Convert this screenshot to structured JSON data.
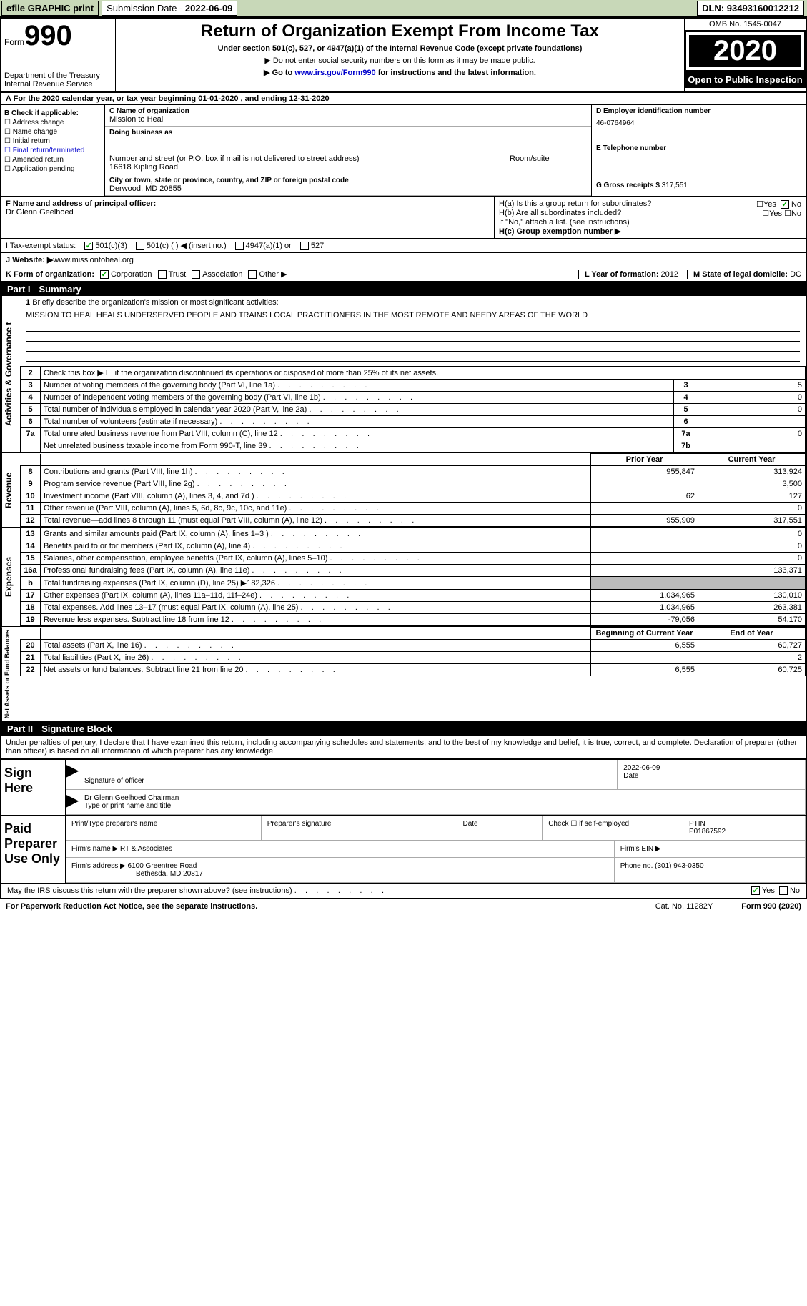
{
  "topbar": {
    "efile": "efile GRAPHIC print",
    "sub_date_label": "Submission Date - ",
    "sub_date": "2022-06-09",
    "dln_label": "DLN: ",
    "dln": "93493160012212"
  },
  "header": {
    "form_label": "Form",
    "form_num": "990",
    "dept": "Department of the Treasury",
    "irs": "Internal Revenue Service",
    "title": "Return of Organization Exempt From Income Tax",
    "sub": "Under section 501(c), 527, or 4947(a)(1) of the Internal Revenue Code (except private foundations)",
    "note1": "▶ Do not enter social security numbers on this form as it may be made public.",
    "note2_pre": "▶ Go to ",
    "note2_link": "www.irs.gov/Form990",
    "note2_post": " for instructions and the latest information.",
    "omb": "OMB No. 1545-0047",
    "year": "2020",
    "open": "Open to Public Inspection"
  },
  "line_a": "For the 2020 calendar year, or tax year beginning 01-01-2020   , and ending 12-31-2020",
  "col_b": {
    "title": "B Check if applicable:",
    "items": [
      "Address change",
      "Name change",
      "Initial return",
      "Final return/terminated",
      "Amended return",
      "Application pending"
    ]
  },
  "col_c": {
    "name_label": "C Name of organization",
    "name": "Mission to Heal",
    "dba_label": "Doing business as",
    "dba": "",
    "addr_label": "Number and street (or P.O. box if mail is not delivered to street address)",
    "room_label": "Room/suite",
    "addr": "16618 Kipling Road",
    "city_label": "City or town, state or province, country, and ZIP or foreign postal code",
    "city": "Derwood, MD  20855",
    "f_label": "F Name and address of principal officer:",
    "f_name": "Dr Glenn Geelhoed"
  },
  "col_d": {
    "ein_label": "D Employer identification number",
    "ein": "46-0764964",
    "tel_label": "E Telephone number",
    "tel": "",
    "gross_label": "G Gross receipts $ ",
    "gross": "317,551"
  },
  "h": {
    "a_label": "H(a)  Is this a group return for subordinates?",
    "b_label": "H(b)  Are all subordinates included?",
    "note": "If \"No,\" attach a list. (see instructions)",
    "c_label": "H(c)  Group exemption number ▶"
  },
  "line_i": {
    "label": "I   Tax-exempt status:",
    "opts": [
      "501(c)(3)",
      "501(c) (  ) ◀ (insert no.)",
      "4947(a)(1) or",
      "527"
    ]
  },
  "line_j": {
    "label": "J   Website: ▶  ",
    "val": "www.missiontoheal.org"
  },
  "line_k": {
    "label": "K Form of organization:",
    "opts": [
      "Corporation",
      "Trust",
      "Association",
      "Other ▶"
    ],
    "l_label": "L Year of formation: ",
    "l_val": "2012",
    "m_label": "M State of legal domicile: ",
    "m_val": "DC"
  },
  "part1": {
    "num": "Part I",
    "title": "Summary"
  },
  "mission": {
    "label": "1  Briefly describe the organization's mission or most significant activities:",
    "text": "MISSION TO HEAL HEALS UNDERSERVED PEOPLE AND TRAINS LOCAL PRACTITIONERS IN THE MOST REMOTE AND NEEDY AREAS OF THE WORLD"
  },
  "gov_rows": [
    {
      "n": "2",
      "t": "Check this box ▶ ☐  if the organization discontinued its operations or disposed of more than 25% of its net assets."
    },
    {
      "n": "3",
      "t": "Number of voting members of the governing body (Part VI, line 1a)",
      "k": "3",
      "v": "5"
    },
    {
      "n": "4",
      "t": "Number of independent voting members of the governing body (Part VI, line 1b)",
      "k": "4",
      "v": "0"
    },
    {
      "n": "5",
      "t": "Total number of individuals employed in calendar year 2020 (Part V, line 2a)",
      "k": "5",
      "v": "0"
    },
    {
      "n": "6",
      "t": "Total number of volunteers (estimate if necessary)",
      "k": "6",
      "v": ""
    },
    {
      "n": "7a",
      "t": "Total unrelated business revenue from Part VIII, column (C), line 12",
      "k": "7a",
      "v": "0"
    },
    {
      "n": "",
      "t": "Net unrelated business taxable income from Form 990-T, line 39",
      "k": "7b",
      "v": ""
    }
  ],
  "col_headers": {
    "prior": "Prior Year",
    "current": "Current Year"
  },
  "rev_rows": [
    {
      "n": "8",
      "t": "Contributions and grants (Part VIII, line 1h)",
      "p": "955,847",
      "c": "313,924"
    },
    {
      "n": "9",
      "t": "Program service revenue (Part VIII, line 2g)",
      "p": "",
      "c": "3,500"
    },
    {
      "n": "10",
      "t": "Investment income (Part VIII, column (A), lines 3, 4, and 7d )",
      "p": "62",
      "c": "127"
    },
    {
      "n": "11",
      "t": "Other revenue (Part VIII, column (A), lines 5, 6d, 8c, 9c, 10c, and 11e)",
      "p": "",
      "c": "0"
    },
    {
      "n": "12",
      "t": "Total revenue—add lines 8 through 11 (must equal Part VIII, column (A), line 12)",
      "p": "955,909",
      "c": "317,551"
    }
  ],
  "exp_rows": [
    {
      "n": "13",
      "t": "Grants and similar amounts paid (Part IX, column (A), lines 1–3 )",
      "p": "",
      "c": "0"
    },
    {
      "n": "14",
      "t": "Benefits paid to or for members (Part IX, column (A), line 4)",
      "p": "",
      "c": "0"
    },
    {
      "n": "15",
      "t": "Salaries, other compensation, employee benefits (Part IX, column (A), lines 5–10)",
      "p": "",
      "c": "0"
    },
    {
      "n": "16a",
      "t": "Professional fundraising fees (Part IX, column (A), line 11e)",
      "p": "",
      "c": "133,371"
    },
    {
      "n": "b",
      "t": "Total fundraising expenses (Part IX, column (D), line 25) ▶182,326",
      "p": "GRAY",
      "c": "GRAY"
    },
    {
      "n": "17",
      "t": "Other expenses (Part IX, column (A), lines 11a–11d, 11f–24e)",
      "p": "1,034,965",
      "c": "130,010"
    },
    {
      "n": "18",
      "t": "Total expenses. Add lines 13–17 (must equal Part IX, column (A), line 25)",
      "p": "1,034,965",
      "c": "263,381"
    },
    {
      "n": "19",
      "t": "Revenue less expenses. Subtract line 18 from line 12",
      "p": "-79,056",
      "c": "54,170"
    }
  ],
  "na_headers": {
    "begin": "Beginning of Current Year",
    "end": "End of Year"
  },
  "na_rows": [
    {
      "n": "20",
      "t": "Total assets (Part X, line 16)",
      "p": "6,555",
      "c": "60,727"
    },
    {
      "n": "21",
      "t": "Total liabilities (Part X, line 26)",
      "p": "",
      "c": "2"
    },
    {
      "n": "22",
      "t": "Net assets or fund balances. Subtract line 21 from line 20",
      "p": "6,555",
      "c": "60,725"
    }
  ],
  "part2": {
    "num": "Part II",
    "title": "Signature Block"
  },
  "sig_decl": "Under penalties of perjury, I declare that I have examined this return, including accompanying schedules and statements, and to the best of my knowledge and belief, it is true, correct, and complete. Declaration of preparer (other than officer) is based on all information of which preparer has any knowledge.",
  "sign": {
    "here": "Sign Here",
    "sig_label": "Signature of officer",
    "date_label": "Date",
    "date": "2022-06-09",
    "name": "Dr Glenn Geelhoed  Chairman",
    "name_label": "Type or print name and title"
  },
  "paid": {
    "title": "Paid Preparer Use Only",
    "r1": [
      "Print/Type preparer's name",
      "Preparer's signature",
      "Date",
      "Check ☐ if self-employed",
      "PTIN"
    ],
    "ptin": "P01867592",
    "firm_name_label": "Firm's name   ▶ ",
    "firm_name": "RT & Associates",
    "firm_ein_label": "Firm's EIN ▶",
    "firm_addr_label": "Firm's address ▶ ",
    "firm_addr": "6100 Greentree Road",
    "firm_addr2": "Bethesda, MD  20817",
    "phone_label": "Phone no. ",
    "phone": "(301) 943-0350"
  },
  "discuss": "May the IRS discuss this return with the preparer shown above? (see instructions)",
  "footer": {
    "notice": "For Paperwork Reduction Act Notice, see the separate instructions.",
    "cat": "Cat. No. 11282Y",
    "form": "Form 990 (2020)"
  },
  "yes": "Yes",
  "no": "No",
  "vlabels": {
    "gov": "Activities & Governance t",
    "rev": "Revenue",
    "exp": "Expenses",
    "na": "Net Assets or Fund Balances"
  }
}
